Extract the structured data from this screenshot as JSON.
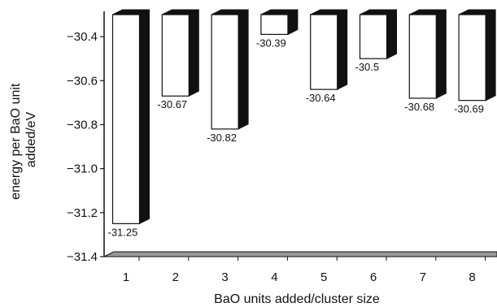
{
  "chart_data": {
    "type": "bar",
    "categories": [
      "1",
      "2",
      "3",
      "4",
      "5",
      "6",
      "7",
      "8"
    ],
    "values": [
      -31.25,
      -30.67,
      -30.82,
      -30.39,
      -30.64,
      -30.5,
      -30.68,
      -30.69
    ],
    "data_labels": [
      "-31.25",
      "-30.67",
      "-30.82",
      "-30.39",
      "-30.64",
      "-30.5",
      "-30.68",
      "-30.69"
    ],
    "yticks": [
      -30.4,
      -30.6,
      -30.8,
      -31.0,
      -31.2,
      -31.4
    ],
    "ytick_labels": [
      "−30.4",
      "−30.6",
      "−30.8",
      "−31.0",
      "−31.2",
      "−31.4"
    ],
    "ylim": [
      -31.4,
      -30.3
    ],
    "xlabel": "BaO units added/cluster size",
    "ylabel": "energy per BaO unit added/eV",
    "ylabel_lines": [
      "energy per BaO unit",
      "added/eV"
    ],
    "style": "3d-bar",
    "grid": false,
    "colors": {
      "bar_face": "#ffffff",
      "bar_side": "#111111",
      "bar_stroke": "#111111",
      "floor": "#9a9a9a"
    }
  }
}
